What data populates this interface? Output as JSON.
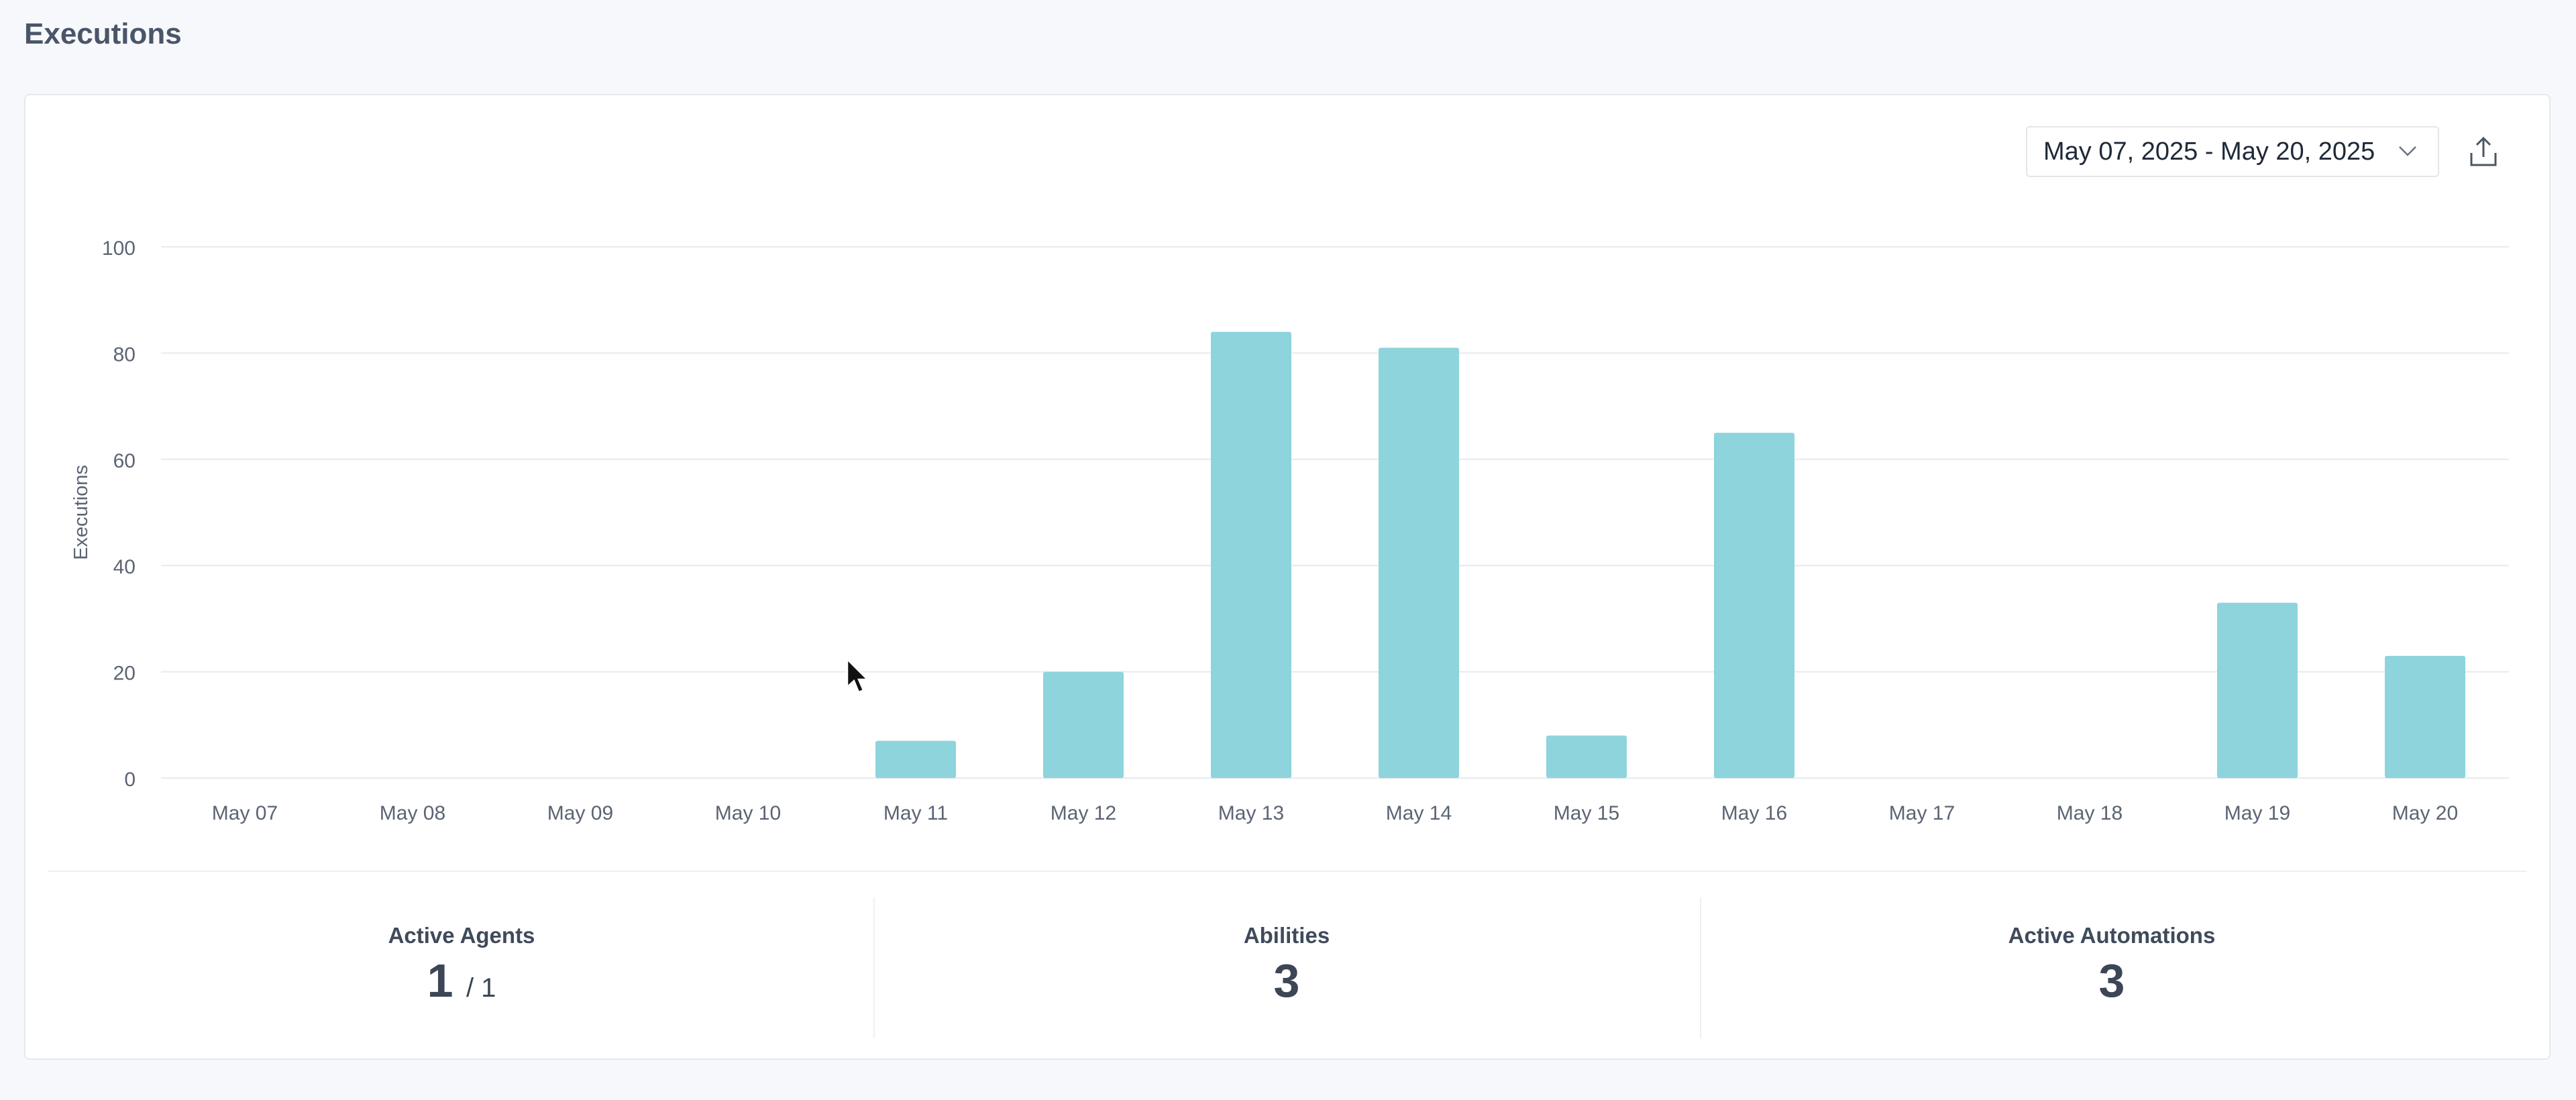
{
  "page": {
    "title": "Executions"
  },
  "toolbar": {
    "date_range": "May 07, 2025 - May 20, 2025",
    "date_dropdown_icon": "chevron-down-icon",
    "export_icon": "export-upload-icon"
  },
  "colors": {
    "bar": "#8dd4dc",
    "grid": "#e8eaee",
    "axis_text": "#5b6473"
  },
  "chart_data": {
    "type": "bar",
    "categories": [
      "May 07",
      "May 08",
      "May 09",
      "May 10",
      "May 11",
      "May 12",
      "May 13",
      "May 14",
      "May 15",
      "May 16",
      "May 17",
      "May 18",
      "May 19",
      "May 20"
    ],
    "values": [
      0,
      0,
      0,
      0,
      7,
      20,
      84,
      81,
      8,
      65,
      0,
      0,
      33,
      23
    ],
    "ylabel": "Executions",
    "xlabel": "",
    "ylim": [
      0,
      100
    ],
    "yticks": [
      0,
      20,
      40,
      60,
      80,
      100
    ],
    "grid": true,
    "legend": "none"
  },
  "stats": {
    "active_agents": {
      "label": "Active Agents",
      "value": "1",
      "sub": "/ 1"
    },
    "abilities": {
      "label": "Abilities",
      "value": "3"
    },
    "active_automations": {
      "label": "Active Automations",
      "value": "3"
    }
  }
}
